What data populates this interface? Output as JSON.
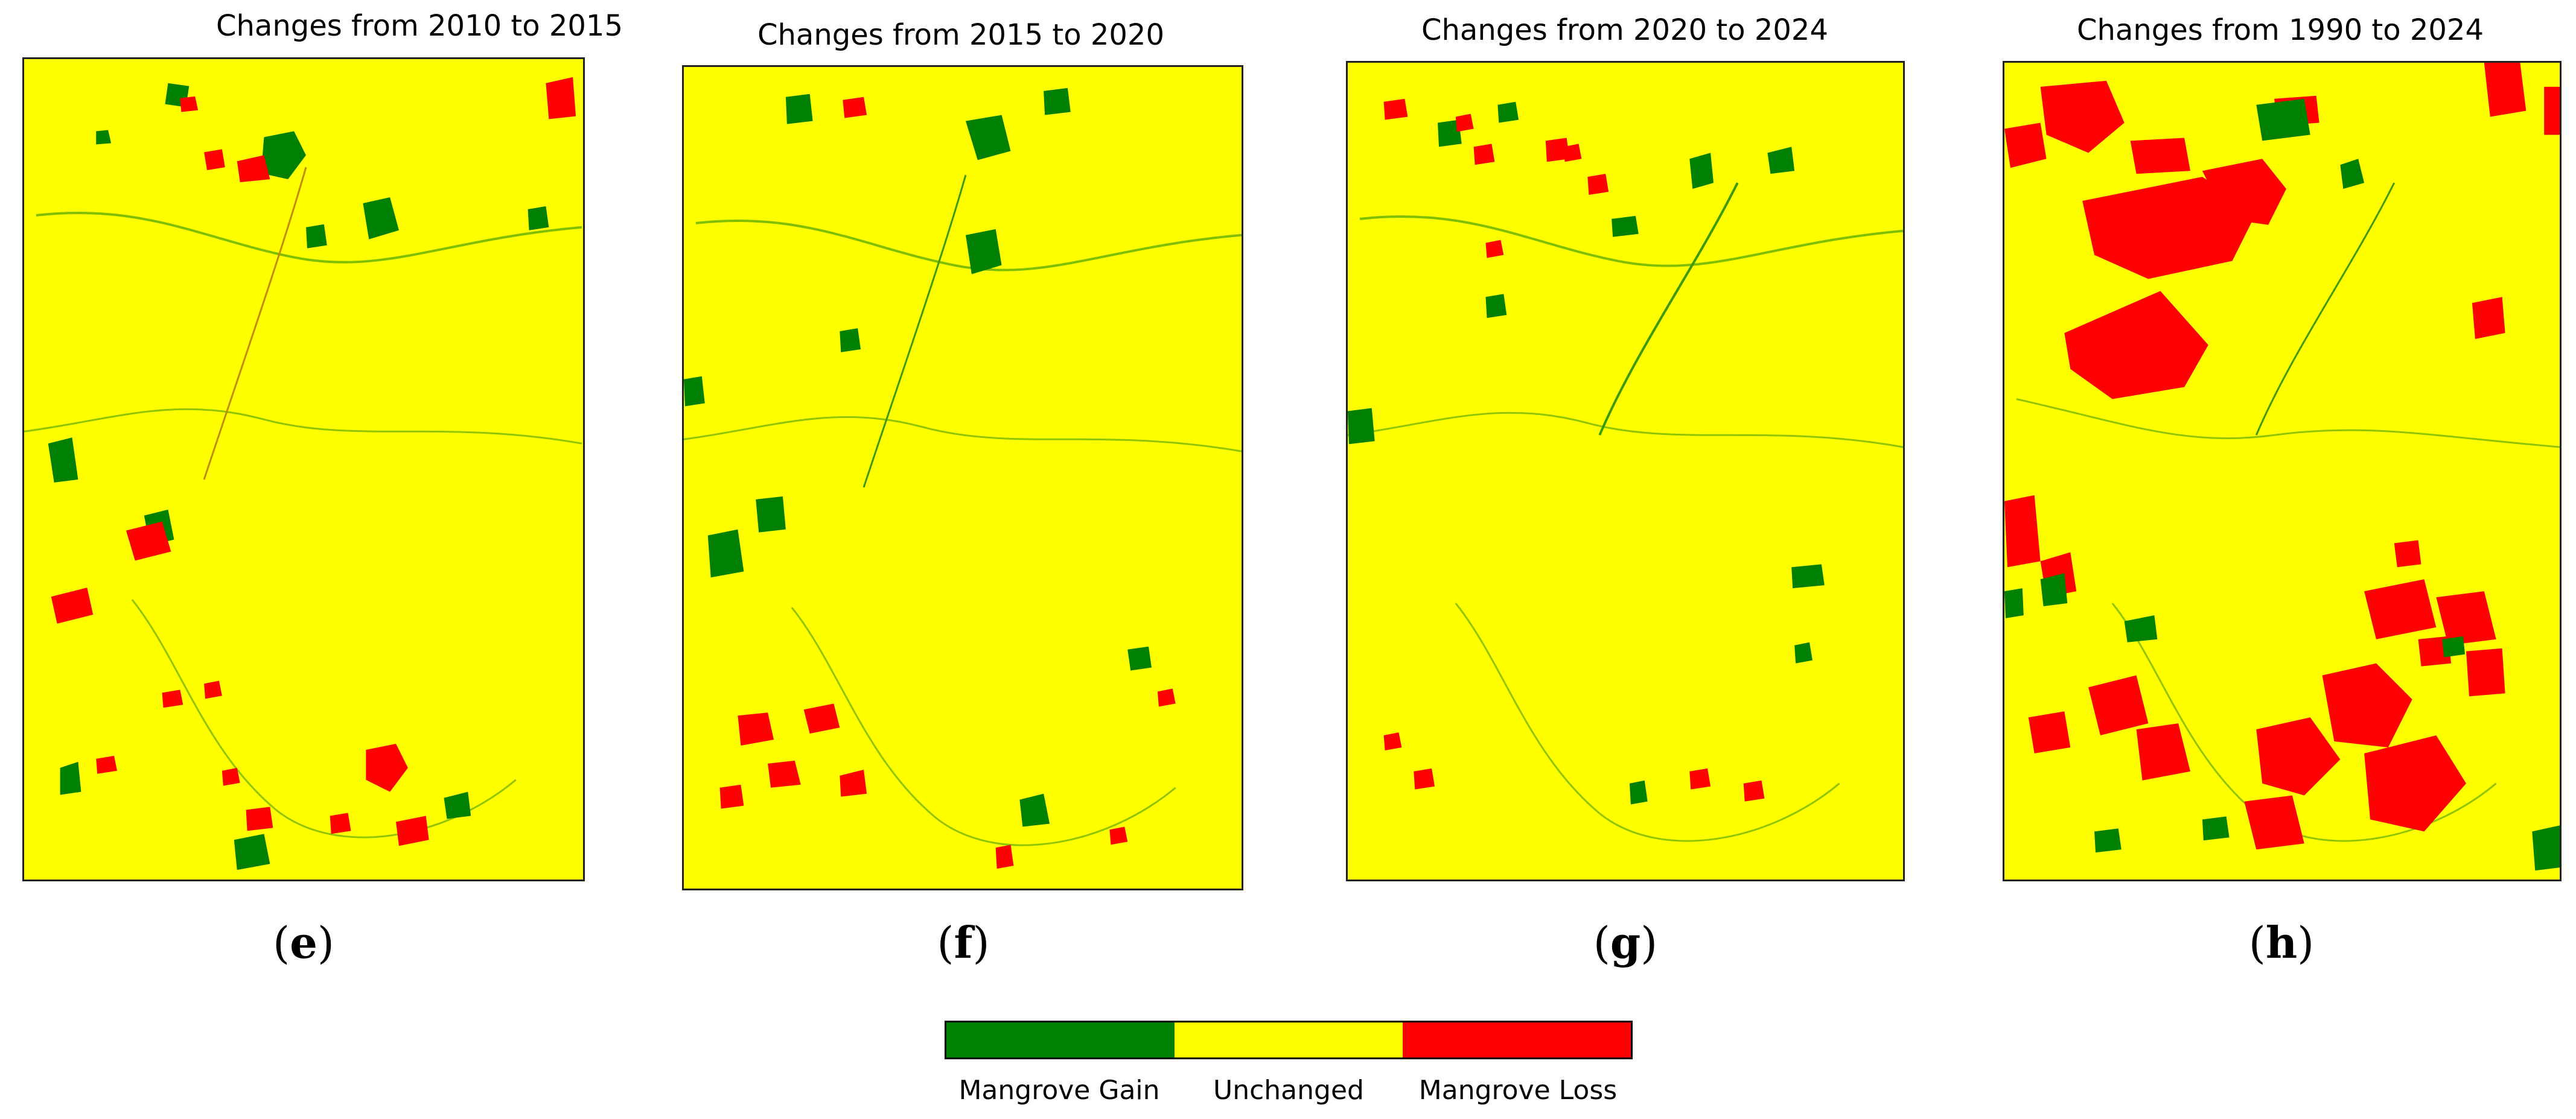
{
  "colors": {
    "gain": "#008000",
    "unchanged": "#ffff00",
    "loss": "#ff0000"
  },
  "panels": [
    {
      "title": "Changes from 2010 to 2015",
      "label_open": "(",
      "label_letter": "e",
      "label_close": ")"
    },
    {
      "title": "Changes from 2015 to 2020",
      "label_open": "(",
      "label_letter": "f",
      "label_close": ")"
    },
    {
      "title": "Changes from 2020 to 2024",
      "label_open": "(",
      "label_letter": "g",
      "label_close": ")"
    },
    {
      "title": "Changes from 1990 to 2024",
      "label_open": "(",
      "label_letter": "h",
      "label_close": ")"
    }
  ],
  "legend": {
    "items": [
      {
        "label": "Mangrove Gain",
        "color": "#008000"
      },
      {
        "label": "Unchanged",
        "color": "#ffff00"
      },
      {
        "label": "Mangrove Loss",
        "color": "#ff0000"
      }
    ]
  }
}
